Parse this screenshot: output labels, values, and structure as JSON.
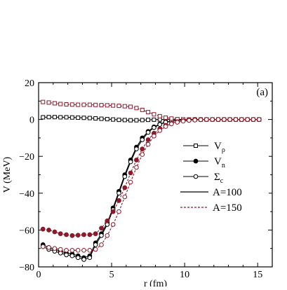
{
  "chart_data": {
    "type": "line",
    "panel_label": "(a)",
    "xlabel": "r (fm)",
    "ylabel": "V (MeV)",
    "xlim": [
      0,
      16
    ],
    "ylim": [
      -80,
      20
    ],
    "xticks": [
      0,
      5,
      10,
      15
    ],
    "yticks": [
      -80,
      -60,
      -40,
      -20,
      0,
      20
    ],
    "x_tick_labels": [
      "0",
      "5",
      "10",
      "15"
    ],
    "y_tick_labels": [
      "−80",
      "−60",
      "−40",
      "−20",
      "0",
      "20"
    ],
    "colors": {
      "A100": "#000000",
      "A150": "#8b1a2a"
    },
    "legend_placement": "center-right",
    "legend_markers": [
      {
        "label": "V",
        "sub": "ρ",
        "marker": "open-square"
      },
      {
        "label": "V",
        "sub": "n",
        "marker": "filled-circle"
      },
      {
        "label": "Σ",
        "sub": "c",
        "marker": "open-circle"
      }
    ],
    "legend_lines": [
      {
        "label": "A=100",
        "style": "solid",
        "color_key": "A100"
      },
      {
        "label": "A=150",
        "style": "dashed",
        "color_key": "A150"
      }
    ],
    "series": [
      {
        "nucleus": "A=100",
        "quantity": "V_rho",
        "marker": "open-square",
        "color_key": "A100",
        "style": "solid",
        "points": [
          [
            0.3,
            1.2
          ],
          [
            0.7,
            1.3
          ],
          [
            1.1,
            1.3
          ],
          [
            1.5,
            1.2
          ],
          [
            1.9,
            1.2
          ],
          [
            2.3,
            1.1
          ],
          [
            2.7,
            1.0
          ],
          [
            3.1,
            0.9
          ],
          [
            3.5,
            0.8
          ],
          [
            3.9,
            0.6
          ],
          [
            4.3,
            0.4
          ],
          [
            4.7,
            0.2
          ],
          [
            5.1,
            0.0
          ],
          [
            5.5,
            -0.2
          ],
          [
            5.9,
            -0.3
          ],
          [
            6.3,
            -0.4
          ],
          [
            6.7,
            -0.4
          ],
          [
            7.1,
            -0.3
          ],
          [
            7.5,
            -0.2
          ],
          [
            7.9,
            -0.1
          ],
          [
            8.3,
            0.0
          ],
          [
            8.7,
            0.0
          ],
          [
            9.1,
            0.0
          ],
          [
            9.5,
            0.0
          ],
          [
            9.9,
            0.0
          ],
          [
            10.3,
            0.0
          ],
          [
            10.7,
            0.0
          ],
          [
            11.1,
            0.0
          ],
          [
            11.5,
            0.0
          ],
          [
            11.9,
            0.0
          ],
          [
            12.3,
            0.0
          ],
          [
            12.7,
            0.0
          ],
          [
            13.1,
            0.0
          ],
          [
            13.5,
            0.0
          ],
          [
            13.9,
            0.0
          ],
          [
            14.3,
            0.0
          ],
          [
            14.7,
            0.0
          ],
          [
            15.1,
            0.0
          ]
        ]
      },
      {
        "nucleus": "A=100",
        "quantity": "V_n",
        "marker": "filled-circle",
        "color_key": "A100",
        "style": "solid",
        "points": [
          [
            0.3,
            -68
          ],
          [
            0.7,
            -69.5
          ],
          [
            1.1,
            -70.5
          ],
          [
            1.5,
            -71.5
          ],
          [
            1.9,
            -72.5
          ],
          [
            2.3,
            -73
          ],
          [
            2.7,
            -74
          ],
          [
            3.1,
            -75
          ],
          [
            3.5,
            -74
          ],
          [
            3.9,
            -67
          ],
          [
            4.3,
            -62
          ],
          [
            4.7,
            -56
          ],
          [
            5.1,
            -48
          ],
          [
            5.5,
            -39
          ],
          [
            5.9,
            -30
          ],
          [
            6.3,
            -22
          ],
          [
            6.7,
            -15
          ],
          [
            7.1,
            -10
          ],
          [
            7.5,
            -6.5
          ],
          [
            7.9,
            -4.0
          ],
          [
            8.3,
            -2.5
          ],
          [
            8.7,
            -1.4
          ],
          [
            9.1,
            -0.8
          ],
          [
            9.5,
            -0.4
          ],
          [
            9.9,
            -0.2
          ],
          [
            10.3,
            -0.1
          ],
          [
            10.7,
            0.0
          ],
          [
            11.1,
            0.0
          ],
          [
            11.5,
            0.0
          ],
          [
            11.9,
            0.0
          ],
          [
            12.3,
            0.0
          ],
          [
            12.7,
            0.0
          ],
          [
            13.1,
            0.0
          ],
          [
            13.5,
            0.0
          ],
          [
            13.9,
            0.0
          ],
          [
            14.3,
            0.0
          ],
          [
            14.7,
            0.0
          ],
          [
            15.1,
            0.0
          ]
        ]
      },
      {
        "nucleus": "A=100",
        "quantity": "Sigma_c",
        "marker": "open-circle",
        "color_key": "A100",
        "style": "solid",
        "points": [
          [
            0.3,
            -69
          ],
          [
            0.7,
            -70.5
          ],
          [
            1.1,
            -71.5
          ],
          [
            1.5,
            -72.5
          ],
          [
            1.9,
            -73.5
          ],
          [
            2.3,
            -74
          ],
          [
            2.7,
            -75
          ],
          [
            3.1,
            -76
          ],
          [
            3.5,
            -75
          ],
          [
            3.9,
            -68
          ],
          [
            4.3,
            -63
          ],
          [
            4.7,
            -57
          ],
          [
            5.1,
            -49
          ],
          [
            5.5,
            -40
          ],
          [
            5.9,
            -31
          ],
          [
            6.3,
            -23
          ],
          [
            6.7,
            -16
          ],
          [
            7.1,
            -11
          ],
          [
            7.5,
            -7
          ],
          [
            7.9,
            -4.4
          ],
          [
            8.3,
            -2.7
          ],
          [
            8.7,
            -1.5
          ],
          [
            9.1,
            -0.9
          ],
          [
            9.5,
            -0.4
          ],
          [
            9.9,
            -0.2
          ],
          [
            10.3,
            -0.1
          ],
          [
            10.7,
            0.0
          ],
          [
            11.1,
            0.0
          ],
          [
            11.5,
            0.0
          ],
          [
            11.9,
            0.0
          ],
          [
            12.3,
            0.0
          ],
          [
            12.7,
            0.0
          ],
          [
            13.1,
            0.0
          ],
          [
            13.5,
            0.0
          ],
          [
            13.9,
            0.0
          ],
          [
            14.3,
            0.0
          ],
          [
            14.7,
            0.0
          ],
          [
            15.1,
            0.0
          ]
        ]
      },
      {
        "nucleus": "A=150",
        "quantity": "V_rho",
        "marker": "open-square",
        "color_key": "A150",
        "style": "dashed",
        "points": [
          [
            0.3,
            9.5
          ],
          [
            0.7,
            9.2
          ],
          [
            1.1,
            8.8
          ],
          [
            1.5,
            8.4
          ],
          [
            1.9,
            8.2
          ],
          [
            2.3,
            8.1
          ],
          [
            2.7,
            8.0
          ],
          [
            3.1,
            8.0
          ],
          [
            3.5,
            8.0
          ],
          [
            3.9,
            7.9
          ],
          [
            4.3,
            7.8
          ],
          [
            4.7,
            7.7
          ],
          [
            5.1,
            7.6
          ],
          [
            5.5,
            7.4
          ],
          [
            5.9,
            7.2
          ],
          [
            6.3,
            6.9
          ],
          [
            6.7,
            6.2
          ],
          [
            7.1,
            5.2
          ],
          [
            7.5,
            4.0
          ],
          [
            7.9,
            2.8
          ],
          [
            8.3,
            1.8
          ],
          [
            8.7,
            1.0
          ],
          [
            9.1,
            0.5
          ],
          [
            9.5,
            0.2
          ],
          [
            9.9,
            0.1
          ],
          [
            10.3,
            0.0
          ],
          [
            10.7,
            0.0
          ],
          [
            11.1,
            0.0
          ],
          [
            11.5,
            0.0
          ],
          [
            11.9,
            0.0
          ],
          [
            12.3,
            0.0
          ],
          [
            12.7,
            0.0
          ],
          [
            13.1,
            0.0
          ],
          [
            13.5,
            0.0
          ],
          [
            13.9,
            0.0
          ],
          [
            14.3,
            0.0
          ],
          [
            14.7,
            0.0
          ],
          [
            15.1,
            0.0
          ]
        ]
      },
      {
        "nucleus": "A=150",
        "quantity": "V_n",
        "marker": "filled-circle",
        "color_key": "A150",
        "style": "dashed",
        "points": [
          [
            0.3,
            -59.5
          ],
          [
            0.7,
            -60
          ],
          [
            1.1,
            -61
          ],
          [
            1.5,
            -62
          ],
          [
            1.9,
            -62.5
          ],
          [
            2.3,
            -63
          ],
          [
            2.7,
            -62.8
          ],
          [
            3.1,
            -62.5
          ],
          [
            3.5,
            -62.5
          ],
          [
            3.9,
            -62
          ],
          [
            4.3,
            -59
          ],
          [
            4.7,
            -55
          ],
          [
            5.1,
            -50
          ],
          [
            5.5,
            -44
          ],
          [
            5.9,
            -37
          ],
          [
            6.3,
            -29
          ],
          [
            6.7,
            -22
          ],
          [
            7.1,
            -16
          ],
          [
            7.5,
            -11
          ],
          [
            7.9,
            -7.5
          ],
          [
            8.3,
            -5.0
          ],
          [
            8.7,
            -3.2
          ],
          [
            9.1,
            -2.0
          ],
          [
            9.5,
            -1.2
          ],
          [
            9.9,
            -0.7
          ],
          [
            10.3,
            -0.4
          ],
          [
            10.7,
            -0.2
          ],
          [
            11.1,
            -0.1
          ],
          [
            11.5,
            0.0
          ],
          [
            11.9,
            0.0
          ],
          [
            12.3,
            0.0
          ],
          [
            12.7,
            0.0
          ],
          [
            13.1,
            0.0
          ],
          [
            13.5,
            0.0
          ],
          [
            13.9,
            0.0
          ],
          [
            14.3,
            0.0
          ],
          [
            14.7,
            0.0
          ],
          [
            15.1,
            0.0
          ]
        ]
      },
      {
        "nucleus": "A=150",
        "quantity": "Sigma_c",
        "marker": "open-circle",
        "color_key": "A150",
        "style": "dashed",
        "points": [
          [
            0.3,
            -69
          ],
          [
            0.7,
            -69.5
          ],
          [
            1.1,
            -70
          ],
          [
            1.5,
            -70.5
          ],
          [
            1.9,
            -71
          ],
          [
            2.3,
            -71
          ],
          [
            2.7,
            -71
          ],
          [
            3.1,
            -71
          ],
          [
            3.5,
            -71
          ],
          [
            3.9,
            -70.5
          ],
          [
            4.3,
            -68
          ],
          [
            4.7,
            -63
          ],
          [
            5.1,
            -57
          ],
          [
            5.5,
            -50
          ],
          [
            5.9,
            -42
          ],
          [
            6.3,
            -34
          ],
          [
            6.7,
            -26
          ],
          [
            7.1,
            -19
          ],
          [
            7.5,
            -13.5
          ],
          [
            7.9,
            -9
          ],
          [
            8.3,
            -6.0
          ],
          [
            8.7,
            -3.8
          ],
          [
            9.1,
            -2.4
          ],
          [
            9.5,
            -1.5
          ],
          [
            9.9,
            -0.9
          ],
          [
            10.3,
            -0.5
          ],
          [
            10.7,
            -0.3
          ],
          [
            11.1,
            -0.1
          ],
          [
            11.5,
            0.0
          ],
          [
            11.9,
            0.0
          ],
          [
            12.3,
            0.0
          ],
          [
            12.7,
            0.0
          ],
          [
            13.1,
            0.0
          ],
          [
            13.5,
            0.0
          ],
          [
            13.9,
            0.0
          ],
          [
            14.3,
            0.0
          ],
          [
            14.7,
            0.0
          ],
          [
            15.1,
            0.0
          ]
        ]
      }
    ]
  }
}
